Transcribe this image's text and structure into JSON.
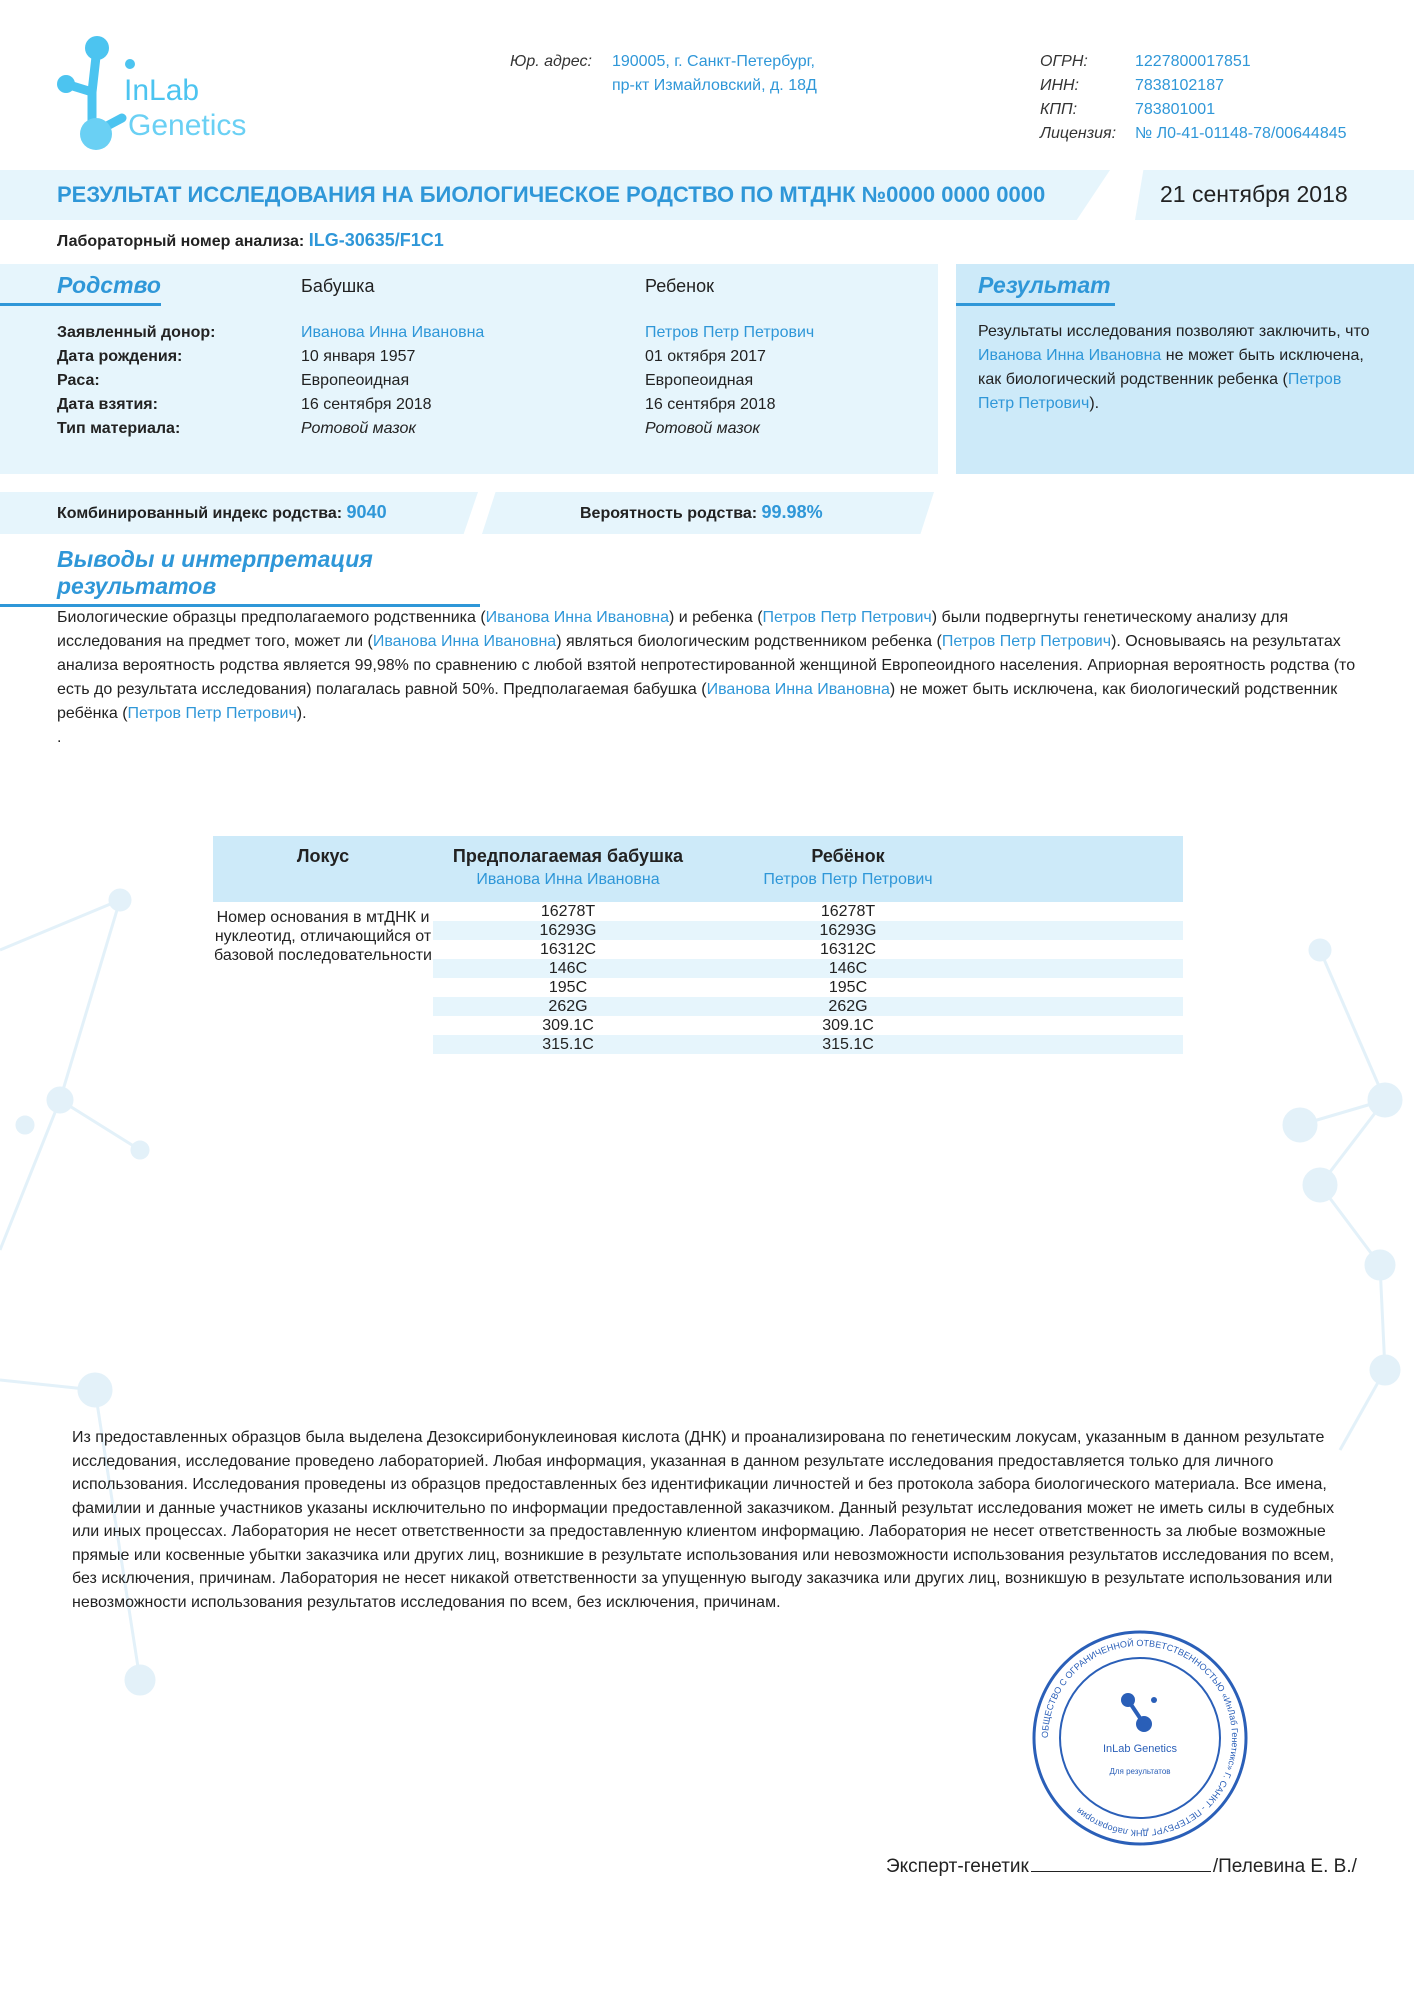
{
  "logo": {
    "text": "InLab Genetics",
    "color": "#3ec3f0"
  },
  "header": {
    "address_label": "Юр. адрес:",
    "address_line1": "190005, г. Санкт-Петербург,",
    "address_line2": "пр-кт Измайловский, д. 18Д",
    "ogrn_label": "ОГРН:",
    "ogrn": "1227800017851",
    "inn_label": "ИНН:",
    "inn": "7838102187",
    "kpp_label": "КПП:",
    "kpp": "783801001",
    "license_label": "Лицензия:",
    "license": "№ Л0-41-01148-78/00644845"
  },
  "title": "РЕЗУЛЬТАТ ИССЛЕДОВАНИЯ НА БИОЛОГИЧЕСКОЕ РОДСТВО ПО МТДНК №0000 0000 0000",
  "date": "21 сентября 2018",
  "lab_number_label": "Лабораторный номер анализа:",
  "lab_number": "ILG-30635/F1C1",
  "kinship": {
    "heading": "Родство",
    "col_a": "Бабушка",
    "col_b": "Ребенок",
    "rows": [
      {
        "k": "Заявленный донор:",
        "a": "Иванова Инна Ивановна",
        "b": "Петров Петр Петрович"
      },
      {
        "k": "Дата рождения:",
        "a": "10 января 1957",
        "b": "01 октября 2017"
      },
      {
        "k": "Раса:",
        "a": "Европеоидная",
        "b": "Европеоидная"
      },
      {
        "k": "Дата взятия:",
        "a": "16 сентября 2018",
        "b": "16 сентября 2018"
      },
      {
        "k": "Тип материала:",
        "a": "Ротовой мазок",
        "b": "Ротовой мазок"
      }
    ]
  },
  "result": {
    "heading": "Результат",
    "t1": "Результаты исследования позволяют заключить, что ",
    "name1": "Иванова Инна Ивановна",
    "t2": " не может быть исключена, как биологический родственник ребенка (",
    "name2": "Петров Петр Петрович",
    "t3": ")."
  },
  "index": {
    "cpi_label": "Комбинированный индекс родства:",
    "cpi": "9040",
    "prob_label": "Вероятность родства:",
    "prob": "99.98%"
  },
  "conclusions": {
    "heading": "Выводы и интерпретация результатов",
    "p1": "Биологические образцы предполагаемого родственника (",
    "n1": "Иванова Инна Ивановна",
    "p2": ") и ребенка (",
    "n2": "Петров Петр Петрович",
    "p3": ") были подвергнуты генетическому анализу для исследования на предмет того, может ли (",
    "n3": "Иванова Инна Ивановна",
    "p4": ") являться биологическим родственником ребенка (",
    "n4": "Петров Петр Петрович",
    "p5": "). Основываясь на результатах анализа вероятность родства является 99,98% по сравнению с любой взятой непротестированной женщиной Европеоидного населения. Априорная вероятность родства (то есть до результата исследования) полагалась равной 50%. Предполагаемая бабушка (",
    "n5": "Иванова Инна Ивановна",
    "p6": ") не может быть исключена, как биологический родственник ребёнка (",
    "n6": "Петров Петр Петрович",
    "p7": ").",
    "dot": "."
  },
  "table": {
    "h_locus": "Локус",
    "h_a": "Предполагаемая бабушка",
    "h_a_name": "Иванова Инна Ивановна",
    "h_b": "Ребёнок",
    "h_b_name": "Петров Петр Петрович",
    "locus_text": "Номер основания в мтДНК и нуклеотид, отличающийся от базовой последовательности",
    "rows": [
      {
        "a": "16278T",
        "b": "16278T"
      },
      {
        "a": "16293G",
        "b": "16293G"
      },
      {
        "a": "16312C",
        "b": "16312C"
      },
      {
        "a": "146C",
        "b": "146C"
      },
      {
        "a": "195C",
        "b": "195C"
      },
      {
        "a": "262G",
        "b": "262G"
      },
      {
        "a": "309.1C",
        "b": "309.1C"
      },
      {
        "a": "315.1C",
        "b": "315.1C"
      }
    ]
  },
  "disclaimer": "Из предоставленных образцов была выделена Дезоксирибонуклеиновая кислота (ДНК) и проанализирована по генетическим локусам, указанным в данном результате исследования, исследование проведено лабораторией. Любая информация, указанная в данном результате исследования предоставляется только для личного использования. Исследования проведены из образцов предоставленных без идентификации личностей и без протокола забора биологического материала.  Все имена, фамилии и данные участников указаны исключительно по информации предоставленной заказчиком. Данный результат исследования может не иметь силы в судебных или иных процессах. Лаборатория не несет ответственности за предоставленную клиентом информацию. Лаборатория не несет ответственность за любые возможные прямые или косвенные убытки заказчика или других лиц, возникшие в результате использования или невозможности использования результатов исследования по всем, без исключения, причинам.  Лаборатория не несет никакой ответственности за упущенную выгоду заказчика или других лиц, возникшую в результате использования или невозможности использования результатов исследования по всем, без исключения, причинам.",
  "signature": {
    "label": "Эксперт-генетик",
    "name": "/Пелевина Е. В./"
  },
  "stamp": {
    "outer": "ОБЩЕСТВО С ОГРАНИЧЕННОЙ ОТВЕТСТВЕННОСТЬЮ «ИнЛаб Генетикс» Г. САНКТ - ПЕТЕРБУРГ ДНК лаборатория",
    "inner": "Для результатов",
    "logo": "InLab Genetics",
    "color": "#2a5fb8"
  }
}
